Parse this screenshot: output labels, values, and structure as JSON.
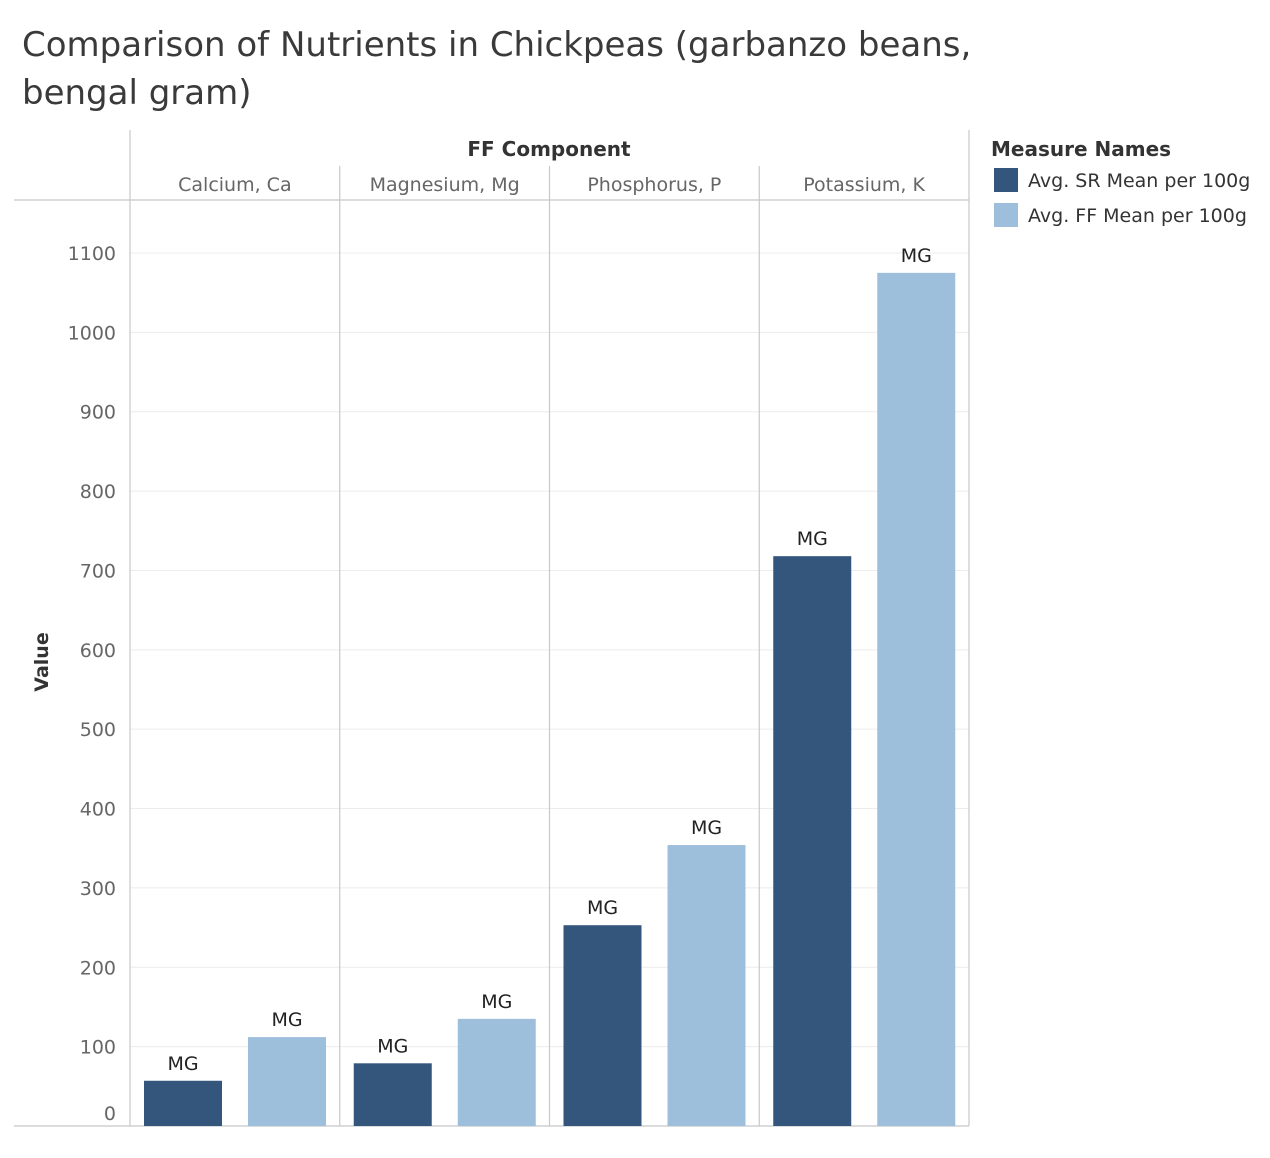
{
  "title_line1": "Comparison of Nutrients in Chickpeas (garbanzo beans,",
  "title_line2": "bengal gram)",
  "chart_data": {
    "type": "bar",
    "column_header": "FF Component",
    "categories": [
      "Calcium, Ca",
      "Magnesium, Mg",
      "Phosphorus, P",
      "Potassium, K"
    ],
    "series": [
      {
        "name": "Avg. SR Mean per 100g",
        "color": "#34567d",
        "values": [
          57,
          79,
          253,
          718
        ],
        "labels": [
          "MG",
          "MG",
          "MG",
          "MG"
        ]
      },
      {
        "name": "Avg. FF Mean per 100g",
        "color": "#9dbfdc",
        "values": [
          112,
          135,
          354,
          1075
        ],
        "labels": [
          "MG",
          "MG",
          "MG",
          "MG"
        ]
      }
    ],
    "ylabel": "Value",
    "xlabel": "",
    "ylim": [
      0,
      1150
    ],
    "yticks": [
      0,
      100,
      200,
      300,
      400,
      500,
      600,
      700,
      800,
      900,
      1000,
      1100
    ],
    "grid": true,
    "legend": {
      "title": "Measure Names",
      "position": "top-right"
    }
  }
}
